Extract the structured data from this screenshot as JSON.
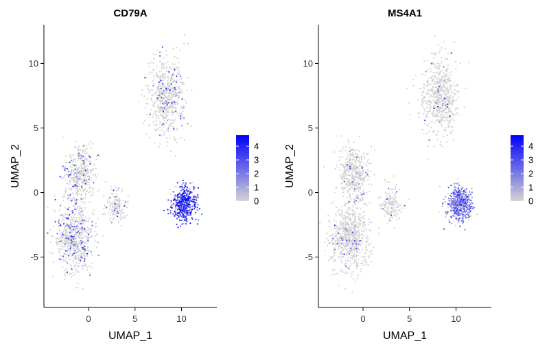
{
  "chart_data": [
    {
      "type": "scatter",
      "title": "CD79A",
      "xlabel": "UMAP_1",
      "ylabel": "UMAP_2",
      "xlim": [
        -4.8,
        13.8
      ],
      "ylim": [
        -8.9,
        13.0
      ],
      "xticks": [
        0,
        5,
        10
      ],
      "xtick_labels": [
        "0",
        "5",
        "10"
      ],
      "yticks": [
        -5,
        0,
        5,
        10
      ],
      "ytick_labels": [
        "-5",
        "0",
        "5",
        "10"
      ],
      "grid": false,
      "legend": {
        "placement": "right",
        "scale": [
          0,
          4.8
        ],
        "ticks": [
          0,
          1,
          2,
          3,
          4
        ],
        "tick_labels": [
          "0",
          "1",
          "2",
          "3",
          "4"
        ],
        "low_color": "#d3d3d3",
        "high_color": "#0000ff"
      },
      "clusters": [
        {
          "center": [
            8.3,
            7.5
          ],
          "spread": [
            1.8,
            2.8
          ],
          "n": 600,
          "expression": 0.1
        },
        {
          "center": [
            -1.5,
            -3.5
          ],
          "spread": [
            1.8,
            2.4
          ],
          "n": 700,
          "expression": 0.15
        },
        {
          "center": [
            -1.0,
            1.5
          ],
          "spread": [
            1.5,
            2.0
          ],
          "n": 420,
          "expression": 0.1
        },
        {
          "center": [
            3.0,
            -1.0
          ],
          "spread": [
            1.0,
            1.4
          ],
          "n": 150,
          "expression": 0.1
        },
        {
          "center": [
            10.3,
            -0.9
          ],
          "spread": [
            1.2,
            1.2
          ],
          "n": 480,
          "expression": 3.3
        }
      ]
    },
    {
      "type": "scatter",
      "title": "MS4A1",
      "xlabel": "UMAP_1",
      "ylabel": "UMAP_2",
      "xlim": [
        -4.8,
        13.8
      ],
      "ylim": [
        -8.9,
        13.0
      ],
      "xticks": [
        0,
        5,
        10
      ],
      "xtick_labels": [
        "0",
        "5",
        "10"
      ],
      "yticks": [
        -5,
        0,
        5,
        10
      ],
      "ytick_labels": [
        "-5",
        "0",
        "5",
        "10"
      ],
      "grid": false,
      "legend": {
        "placement": "right",
        "scale": [
          0,
          4.8
        ],
        "ticks": [
          0,
          1,
          2,
          3,
          4
        ],
        "tick_labels": [
          "0",
          "1",
          "2",
          "3",
          "4"
        ],
        "low_color": "#d3d3d3",
        "high_color": "#0000ff"
      },
      "clusters": [
        {
          "center": [
            8.3,
            7.5
          ],
          "spread": [
            1.8,
            2.8
          ],
          "n": 600,
          "expression": 0.05
        },
        {
          "center": [
            -1.5,
            -3.5
          ],
          "spread": [
            1.8,
            2.4
          ],
          "n": 700,
          "expression": 0.05
        },
        {
          "center": [
            -1.0,
            1.5
          ],
          "spread": [
            1.5,
            2.0
          ],
          "n": 420,
          "expression": 0.05
        },
        {
          "center": [
            3.0,
            -1.0
          ],
          "spread": [
            1.0,
            1.4
          ],
          "n": 150,
          "expression": 0.05
        },
        {
          "center": [
            10.3,
            -0.9
          ],
          "spread": [
            1.2,
            1.2
          ],
          "n": 480,
          "expression": 2.0
        }
      ]
    }
  ]
}
